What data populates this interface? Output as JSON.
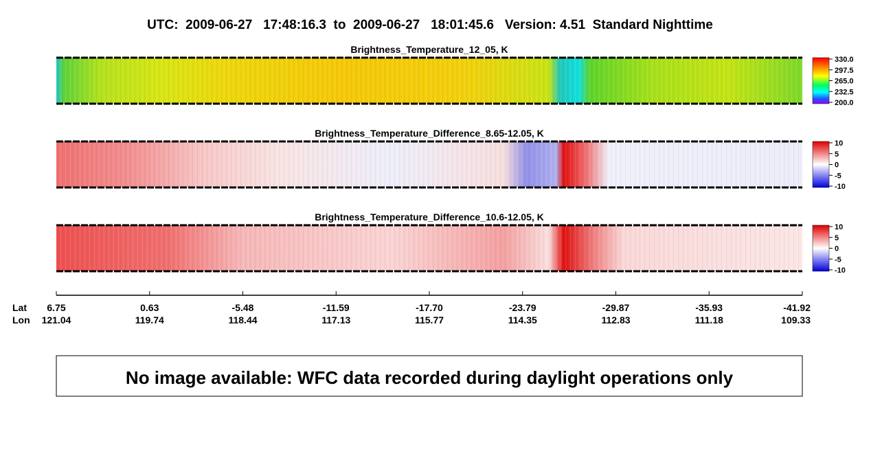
{
  "header": {
    "title": "UTC:  2009-06-27   17:48:16.3  to  2009-06-27   18:01:45.6   Version: 4.51  Standard Nighttime"
  },
  "panels": [
    {
      "title": "Brightness_Temperature_12_05, K",
      "colorbar_ticks": [
        "330.0",
        "297.5",
        "265.0",
        "232.5",
        "200.0"
      ]
    },
    {
      "title": "Brightness_Temperature_Difference_8.65-12.05, K",
      "colorbar_ticks": [
        "10",
        "5",
        "0",
        "-5",
        "-10"
      ]
    },
    {
      "title": "Brightness_Temperature_Difference_10.6-12.05, K",
      "colorbar_ticks": [
        "10",
        "5",
        "0",
        "-5",
        "-10"
      ]
    }
  ],
  "axis": {
    "lat_label": "Lat",
    "lon_label": "Lon",
    "lat": [
      "6.75",
      "0.63",
      "-5.48",
      "-11.59",
      "-17.70",
      "-23.79",
      "-29.87",
      "-35.93",
      "-41.92"
    ],
    "lon": [
      "121.04",
      "119.74",
      "118.44",
      "117.13",
      "115.77",
      "114.35",
      "112.83",
      "111.18",
      "109.33"
    ]
  },
  "notice": "No image available: WFC data recorded during daylight operations only"
}
